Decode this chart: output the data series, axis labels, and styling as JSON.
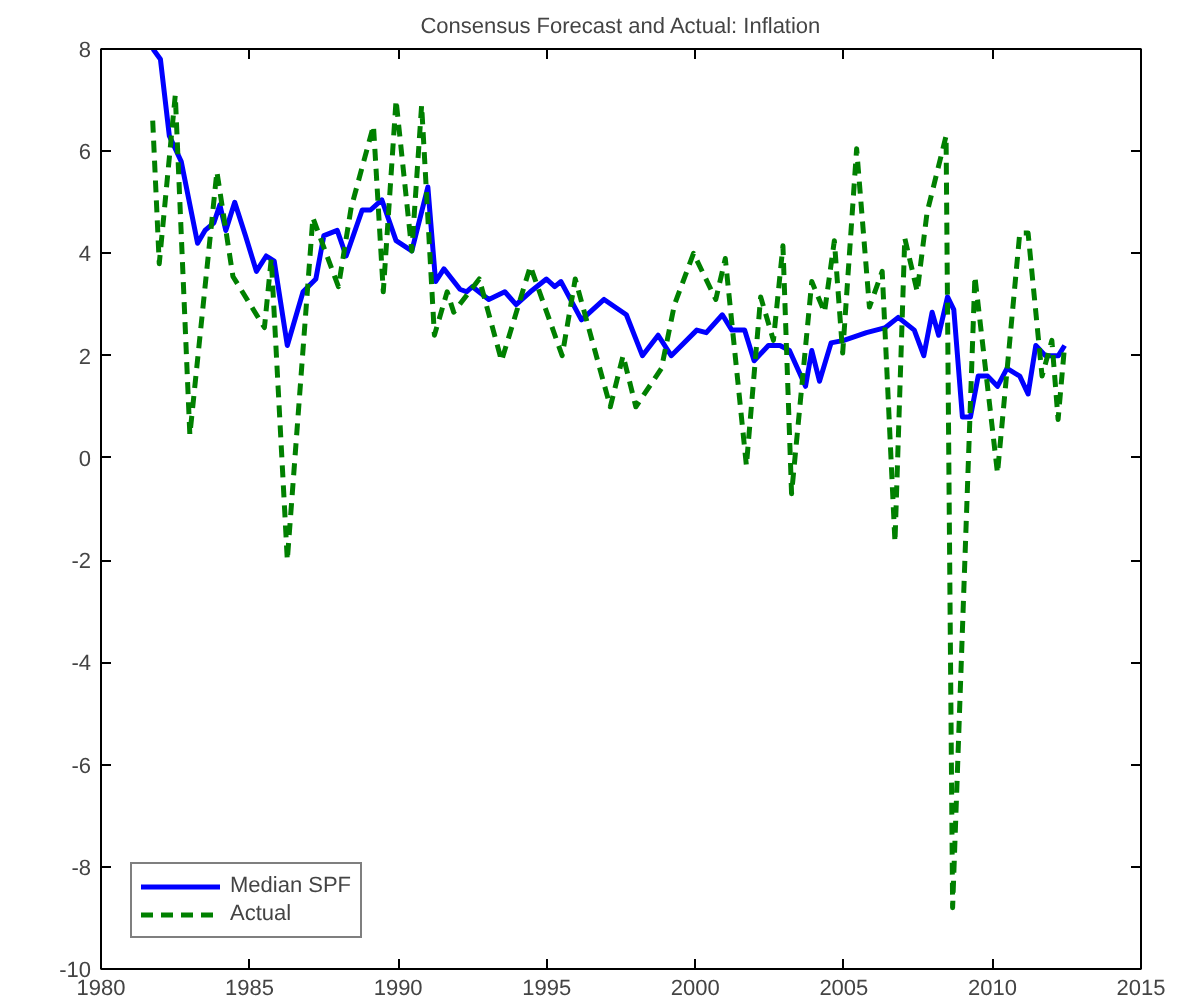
{
  "chart_data": {
    "type": "line",
    "title": "Consensus Forecast and Actual: Inflation",
    "xlim": [
      1980,
      2015
    ],
    "xticks": [
      1980,
      1985,
      1990,
      1995,
      2000,
      2005,
      2010,
      2015
    ],
    "ylim": [
      -10,
      8
    ],
    "yticks": [
      -10,
      -8,
      -6,
      -4,
      -2,
      0,
      2,
      4,
      6,
      8
    ],
    "grid": false,
    "legend": "bottom left",
    "series": [
      {
        "name": "Median SPF",
        "color": "#0000ff",
        "line_style": "solid",
        "x": [
          1981.75,
          1982.0,
          1982.3,
          1982.7,
          1983.25,
          1983.5,
          1983.8,
          1984.0,
          1984.2,
          1984.5,
          1984.86,
          1985.23,
          1985.56,
          1985.83,
          1986.27,
          1986.8,
          1987.23,
          1987.5,
          1987.95,
          1988.25,
          1988.79,
          1989.07,
          1989.45,
          1989.93,
          1990.46,
          1991.0,
          1991.26,
          1991.54,
          1992.08,
          1992.3,
          1992.5,
          1993.05,
          1993.59,
          1993.97,
          1994.45,
          1994.99,
          1995.27,
          1995.48,
          1996.17,
          1996.93,
          1997.68,
          1998.22,
          1998.75,
          1999.19,
          2000.05,
          2000.37,
          2000.91,
          2001.23,
          2001.66,
          2001.98,
          2002.46,
          2002.85,
          2003.17,
          2003.71,
          2003.92,
          2004.18,
          2004.57,
          2005.0,
          2005.76,
          2006.4,
          2006.83,
          2007.37,
          2007.69,
          2007.97,
          2008.19,
          2008.49,
          2008.7,
          2008.99,
          2009.26,
          2009.52,
          2009.84,
          2010.17,
          2010.49,
          2010.92,
          2011.2,
          2011.46,
          2011.78,
          2012.22,
          2012.43
        ],
        "values": [
          8.0,
          7.8,
          6.3,
          5.8,
          4.2,
          4.45,
          4.6,
          4.95,
          4.45,
          5.0,
          4.35,
          3.65,
          3.95,
          3.85,
          2.2,
          3.25,
          3.5,
          4.35,
          4.45,
          3.95,
          4.85,
          4.85,
          5.05,
          4.25,
          4.05,
          5.3,
          3.45,
          3.7,
          3.3,
          3.25,
          3.35,
          3.1,
          3.25,
          3.0,
          3.25,
          3.5,
          3.35,
          3.45,
          2.7,
          3.1,
          2.8,
          2.0,
          2.4,
          2.0,
          2.5,
          2.45,
          2.8,
          2.5,
          2.5,
          1.9,
          2.2,
          2.2,
          2.1,
          1.4,
          2.1,
          1.5,
          2.25,
          2.3,
          2.45,
          2.55,
          2.75,
          2.5,
          2.0,
          2.85,
          2.4,
          3.15,
          2.9,
          0.8,
          0.8,
          1.6,
          1.6,
          1.4,
          1.75,
          1.6,
          1.25,
          2.2,
          2.0,
          2.0,
          2.2
        ]
      },
      {
        "name": "Actual",
        "color": "#008000",
        "line_style": "dashed",
        "x": [
          1981.74,
          1981.96,
          1982.5,
          1982.99,
          1983.9,
          1984.44,
          1985.5,
          1985.73,
          1986.27,
          1987.13,
          1987.99,
          1988.42,
          1989.17,
          1989.5,
          1989.93,
          1990.46,
          1990.79,
          1991.22,
          1991.65,
          1991.87,
          1992.73,
          1993.48,
          1994.45,
          1995.52,
          1995.96,
          1997.14,
          1997.57,
          1998.0,
          1998.86,
          1999.3,
          1999.94,
          2000.69,
          2001.01,
          2001.72,
          2002.2,
          2002.63,
          2002.95,
          2003.24,
          2003.92,
          2004.35,
          2004.68,
          2004.96,
          2005.43,
          2005.86,
          2006.29,
          2006.72,
          2007.05,
          2007.47,
          2007.8,
          2008.44,
          2008.66,
          2009.41,
          2010.17,
          2010.92,
          2011.2,
          2011.67,
          2012.0,
          2012.21,
          2012.43
        ],
        "values": [
          6.6,
          3.8,
          7.1,
          0.45,
          5.6,
          3.55,
          2.55,
          3.9,
          -2.0,
          4.7,
          3.35,
          4.9,
          6.5,
          3.25,
          7.0,
          4.05,
          6.9,
          2.4,
          3.25,
          2.85,
          3.5,
          1.9,
          3.75,
          2.0,
          3.5,
          1.0,
          2.0,
          1.0,
          1.75,
          3.0,
          4.0,
          3.1,
          3.9,
          -0.15,
          3.15,
          2.3,
          4.15,
          -0.7,
          3.45,
          2.85,
          4.25,
          2.05,
          6.05,
          2.95,
          3.65,
          -1.65,
          4.3,
          3.25,
          4.8,
          6.3,
          -8.8,
          3.55,
          -0.3,
          4.4,
          4.4,
          1.6,
          2.3,
          0.75,
          2.2
        ]
      }
    ]
  }
}
